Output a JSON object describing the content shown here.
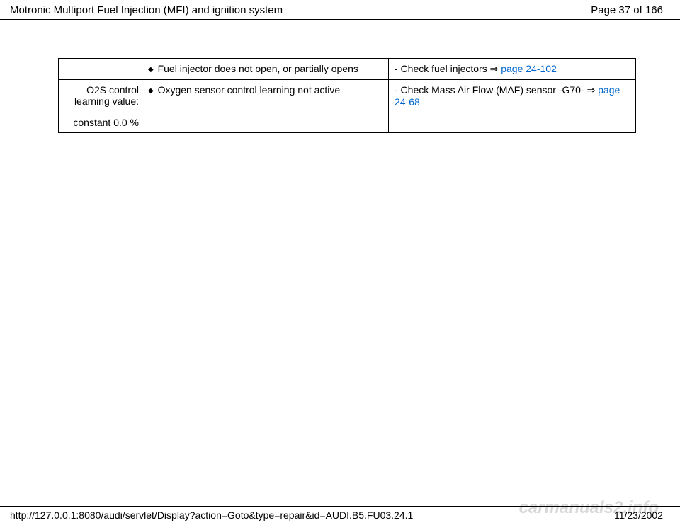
{
  "header": {
    "title": "Motronic Multiport Fuel Injection (MFI) and ignition system",
    "page_label": "Page 37 of 166"
  },
  "table": {
    "rows": [
      {
        "col1": "",
        "col2_bullet": "◆",
        "col2_text": "Fuel injector does not open, or partially opens",
        "col3_prefix": "- Check fuel injectors  ",
        "col3_arrow": "⇒",
        "col3_link": "page 24-102",
        "col3_suffix": ""
      },
      {
        "col1_line1": "O2S control learning value:",
        "col1_line2": "constant 0.0 %",
        "col2_bullet": "◆",
        "col2_text": "Oxygen sensor control learning not active",
        "col3_prefix": "- Check Mass Air Flow (MAF) sensor -G70-  ",
        "col3_arrow": "⇒",
        "col3_link": "page 24-68",
        "col3_suffix": ""
      }
    ]
  },
  "footer": {
    "url": "http://127.0.0.1:8080/audi/servlet/Display?action=Goto&type=repair&id=AUDI.B5.FU03.24.1",
    "date": "11/23/2002"
  },
  "watermark": "carmanuals2.info"
}
